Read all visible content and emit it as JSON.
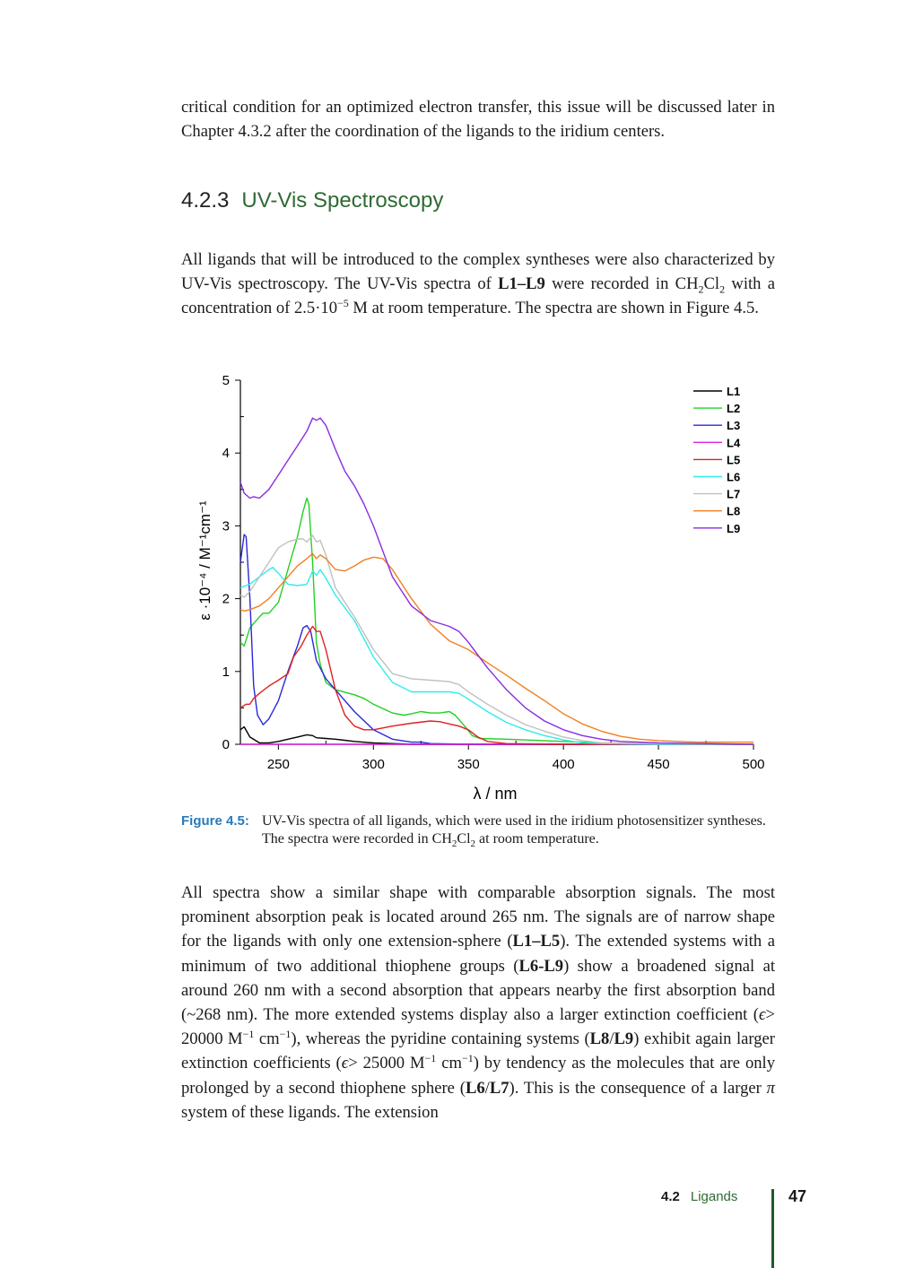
{
  "paragraphs": {
    "p1": [
      {
        "t": "critical condition for an optimized electron transfer, this issue will be discussed later in Chapter 4.3.2 after the coordination of the ligands to the iridium centers."
      }
    ],
    "p2": [
      {
        "t": "All ligands that will be introduced to the complex syntheses were also characterized by UV-Vis spectroscopy. The UV-Vis spectra of "
      },
      {
        "t": "L1–L9",
        "s": "b"
      },
      {
        "t": " were recorded in CH"
      },
      {
        "t": "2",
        "s": "sub"
      },
      {
        "t": "Cl"
      },
      {
        "t": "2",
        "s": "sub"
      },
      {
        "t": " with a concentration of 2.5·10"
      },
      {
        "t": "−5",
        "s": "sup"
      },
      {
        "t": " M at room temperature.  The spectra are shown in Figure 4.5."
      }
    ],
    "p3": [
      {
        "t": "All spectra show a similar shape with comparable absorption signals.  The most prominent absorption peak is located around 265 nm.  The signals are of narrow shape for the ligands with only one extension-sphere ("
      },
      {
        "t": "L1–L5",
        "s": "b"
      },
      {
        "t": "). The extended systems with a minimum of two additional thiophene groups ("
      },
      {
        "t": "L6-L9",
        "s": "b"
      },
      {
        "t": ") show a broadened signal at around 260 nm with a second absorption that appears nearby the first absorption band (~268 nm).  The more extended systems display also a larger extinction coefficient ("
      },
      {
        "t": "ϵ",
        "s": "i"
      },
      {
        "t": "> 20000 M"
      },
      {
        "t": "−1",
        "s": "sup"
      },
      {
        "t": " cm"
      },
      {
        "t": "−1",
        "s": "sup"
      },
      {
        "t": "), whereas the pyridine containing systems ("
      },
      {
        "t": "L8",
        "s": "b"
      },
      {
        "t": "/"
      },
      {
        "t": "L9",
        "s": "b"
      },
      {
        "t": ") exhibit again larger extinction coefficients ("
      },
      {
        "t": "ϵ",
        "s": "i"
      },
      {
        "t": "> 25000 M"
      },
      {
        "t": "−1",
        "s": "sup"
      },
      {
        "t": " cm"
      },
      {
        "t": "−1",
        "s": "sup"
      },
      {
        "t": ") by tendency as the molecules that are only prolonged by a second thiophene sphere ("
      },
      {
        "t": "L6",
        "s": "b"
      },
      {
        "t": "/"
      },
      {
        "t": "L7",
        "s": "b"
      },
      {
        "t": "). This is the consequence of a larger "
      },
      {
        "t": "π",
        "s": "i"
      },
      {
        "t": " system of these ligands. The extension"
      }
    ]
  },
  "heading": {
    "number": "4.2.3",
    "title": "UV-Vis Spectroscopy"
  },
  "caption": {
    "label": "Figure 4.5:",
    "text_a": "UV-Vis spectra of all ligands, which were used in the iridium photosensitizer syntheses. The spectra were recorded in CH",
    "sub1": "2",
    "text_b": "Cl",
    "sub2": "2",
    "text_c": " at room temperature."
  },
  "footer": {
    "section_number": "4.2",
    "section_title": "Ligands",
    "page_number": "47"
  },
  "chart_data": {
    "type": "line",
    "title": "",
    "xlabel": "λ / nm",
    "ylabel": "ε ·10⁻⁴ / M⁻¹cm⁻¹",
    "xlim": [
      230,
      500
    ],
    "ylim": [
      0,
      5
    ],
    "xticks": [
      250,
      300,
      350,
      400,
      450,
      500
    ],
    "yticks": [
      0,
      1,
      2,
      3,
      4,
      5
    ],
    "grid": false,
    "legend_position": "top-right",
    "series": [
      {
        "name": "L1",
        "color": "#000000",
        "x": [
          230,
          232,
          235,
          240,
          245,
          250,
          255,
          260,
          265,
          268,
          270,
          275,
          280,
          290,
          300,
          310,
          320,
          350,
          400,
          500
        ],
        "y": [
          0.2,
          0.24,
          0.1,
          0.02,
          0.02,
          0.04,
          0.07,
          0.1,
          0.13,
          0.12,
          0.09,
          0.08,
          0.07,
          0.04,
          0.02,
          0.01,
          0,
          0,
          0,
          0
        ]
      },
      {
        "name": "L2",
        "color": "#22d022",
        "x": [
          230,
          232,
          235,
          240,
          242,
          245,
          250,
          255,
          260,
          263,
          265,
          266,
          268,
          270,
          272,
          275,
          280,
          290,
          295,
          300,
          310,
          316,
          320,
          325,
          330,
          335,
          340,
          343,
          348,
          352,
          356,
          370,
          400,
          420,
          450,
          500
        ],
        "y": [
          1.4,
          1.35,
          1.6,
          1.75,
          1.8,
          1.8,
          1.95,
          2.4,
          2.85,
          3.2,
          3.38,
          3.3,
          2.5,
          1.4,
          1.1,
          0.85,
          0.75,
          0.68,
          0.63,
          0.55,
          0.43,
          0.4,
          0.42,
          0.45,
          0.43,
          0.43,
          0.45,
          0.4,
          0.25,
          0.12,
          0.08,
          0.07,
          0.04,
          0.02,
          0.01,
          0
        ]
      },
      {
        "name": "L3",
        "color": "#2828dc",
        "x": [
          230,
          232,
          233,
          235,
          237,
          239,
          242,
          245,
          250,
          255,
          260,
          263,
          265,
          267,
          270,
          275,
          280,
          290,
          300,
          310,
          320,
          325,
          330,
          350,
          500
        ],
        "y": [
          2.5,
          2.88,
          2.85,
          2.0,
          0.8,
          0.4,
          0.27,
          0.35,
          0.6,
          1.0,
          1.35,
          1.6,
          1.63,
          1.55,
          1.15,
          0.9,
          0.75,
          0.45,
          0.2,
          0.07,
          0.03,
          0.03,
          0.01,
          0,
          0
        ]
      },
      {
        "name": "L4",
        "color": "#e020e0",
        "x": [
          230,
          300,
          350,
          400,
          500
        ],
        "y": [
          0,
          0,
          0,
          0,
          0
        ]
      },
      {
        "name": "L5",
        "color": "#e02020",
        "x": [
          230,
          233,
          235,
          237,
          240,
          245,
          250,
          255,
          258,
          262,
          265,
          268,
          270,
          272,
          275,
          280,
          285,
          290,
          295,
          300,
          310,
          320,
          330,
          335,
          340,
          345,
          350,
          355,
          360,
          370,
          400,
          500
        ],
        "y": [
          0.5,
          0.55,
          0.55,
          0.63,
          0.7,
          0.8,
          0.88,
          0.97,
          1.2,
          1.35,
          1.5,
          1.62,
          1.55,
          1.55,
          1.3,
          0.75,
          0.4,
          0.25,
          0.2,
          0.2,
          0.25,
          0.29,
          0.32,
          0.31,
          0.28,
          0.25,
          0.2,
          0.1,
          0.04,
          0.01,
          0,
          0
        ]
      },
      {
        "name": "L6",
        "color": "#30ecec",
        "x": [
          230,
          235,
          240,
          245,
          247,
          250,
          255,
          260,
          265,
          268,
          270,
          272,
          275,
          280,
          290,
          300,
          310,
          320,
          330,
          340,
          345,
          350,
          360,
          370,
          380,
          390,
          400,
          410,
          420,
          450,
          500
        ],
        "y": [
          2.15,
          2.2,
          2.3,
          2.4,
          2.43,
          2.35,
          2.2,
          2.18,
          2.2,
          2.38,
          2.32,
          2.4,
          2.28,
          2.05,
          1.7,
          1.2,
          0.85,
          0.72,
          0.72,
          0.72,
          0.7,
          0.62,
          0.45,
          0.3,
          0.2,
          0.12,
          0.06,
          0.02,
          0.01,
          0,
          0
        ]
      },
      {
        "name": "L7",
        "color": "#c0c0c0",
        "x": [
          230,
          232,
          235,
          240,
          245,
          250,
          255,
          260,
          263,
          265,
          268,
          270,
          272,
          275,
          280,
          290,
          300,
          310,
          320,
          330,
          340,
          345,
          350,
          360,
          370,
          380,
          390,
          400,
          410,
          420,
          450,
          500
        ],
        "y": [
          2.05,
          2.02,
          2.1,
          2.3,
          2.5,
          2.7,
          2.78,
          2.82,
          2.82,
          2.78,
          2.87,
          2.78,
          2.8,
          2.6,
          2.15,
          1.75,
          1.3,
          0.97,
          0.9,
          0.88,
          0.86,
          0.82,
          0.72,
          0.55,
          0.4,
          0.27,
          0.18,
          0.1,
          0.05,
          0.02,
          0.01,
          0
        ]
      },
      {
        "name": "L8",
        "color": "#f08020",
        "x": [
          230,
          232,
          235,
          240,
          245,
          250,
          255,
          260,
          265,
          268,
          270,
          272,
          275,
          280,
          285,
          290,
          295,
          300,
          305,
          310,
          320,
          330,
          340,
          350,
          360,
          370,
          380,
          390,
          400,
          410,
          420,
          430,
          440,
          450,
          470,
          500
        ],
        "y": [
          1.85,
          1.83,
          1.85,
          1.9,
          2.0,
          2.15,
          2.3,
          2.45,
          2.55,
          2.62,
          2.55,
          2.6,
          2.55,
          2.4,
          2.38,
          2.45,
          2.53,
          2.57,
          2.55,
          2.4,
          2.0,
          1.65,
          1.42,
          1.3,
          1.12,
          0.95,
          0.77,
          0.6,
          0.42,
          0.28,
          0.18,
          0.11,
          0.07,
          0.05,
          0.03,
          0.03
        ]
      },
      {
        "name": "L9",
        "color": "#8a2be2",
        "x": [
          230,
          232,
          235,
          237,
          240,
          245,
          250,
          255,
          260,
          265,
          268,
          270,
          272,
          275,
          280,
          285,
          290,
          295,
          300,
          310,
          320,
          330,
          340,
          345,
          350,
          360,
          370,
          380,
          390,
          400,
          410,
          420,
          430,
          450,
          500
        ],
        "y": [
          3.6,
          3.45,
          3.38,
          3.4,
          3.38,
          3.5,
          3.7,
          3.9,
          4.1,
          4.3,
          4.48,
          4.45,
          4.48,
          4.38,
          4.05,
          3.75,
          3.55,
          3.3,
          3.0,
          2.3,
          1.9,
          1.7,
          1.62,
          1.55,
          1.4,
          1.05,
          0.75,
          0.5,
          0.32,
          0.2,
          0.12,
          0.07,
          0.04,
          0.02,
          0
        ]
      }
    ]
  }
}
